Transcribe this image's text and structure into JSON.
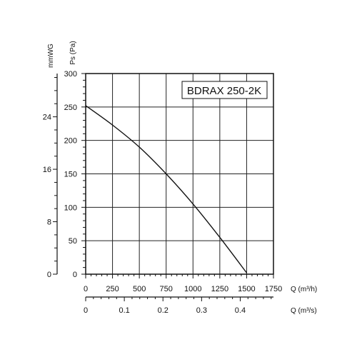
{
  "chart_data": {
    "type": "line",
    "title": "BDRAX 250-2K",
    "x_label": "Q (m³/h)",
    "y_label": "Ps (Pa)",
    "y2_label": "mmWG",
    "x2_label": "Q (m³/s)",
    "x_ticks": [
      "0",
      "250",
      "500",
      "750",
      "1000",
      "1250",
      "1500",
      "1750"
    ],
    "y_ticks": [
      "0",
      "50",
      "100",
      "150",
      "200",
      "250",
      "300"
    ],
    "y2_ticks": [
      "0",
      "8",
      "16",
      "24"
    ],
    "x2_ticks": [
      "0",
      "0.1",
      "0.2",
      "0.3",
      "0.4"
    ],
    "xlim": [
      0,
      1750
    ],
    "ylim": [
      0,
      300
    ],
    "y2lim": [
      0,
      30.6
    ],
    "x2lim": [
      0,
      0.486
    ],
    "grid": true,
    "series": [
      {
        "x": [
          0,
          250,
          500,
          750,
          1000,
          1250,
          1500
        ],
        "y": [
          252,
          223,
          190,
          150,
          105,
          55,
          2
        ]
      }
    ]
  }
}
